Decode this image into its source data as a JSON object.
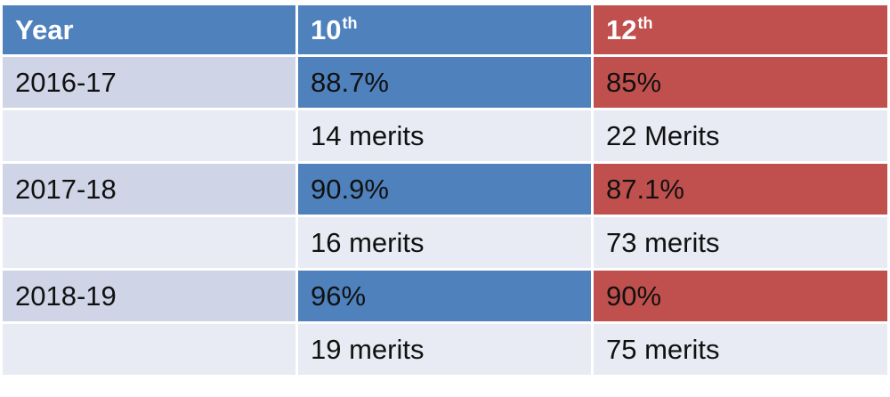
{
  "colors": {
    "header": "#4f81bd",
    "col_10th": "#4f81bd",
    "col_12th": "#c0504d",
    "band": "#cfd5e6",
    "plain": "#e8ebf3"
  },
  "header": {
    "year": "Year",
    "c10_num": "10",
    "c10_sup": "th",
    "c12_num": "12",
    "c12_sup": "th"
  },
  "rows": [
    {
      "year": "2016-17",
      "pct_10": "88.7%",
      "pct_12": "85%"
    },
    {
      "year": "",
      "merits_10": "14 merits",
      "merits_12": "22 Merits"
    },
    {
      "year": "2017-18",
      "pct_10": "90.9%",
      "pct_12": "87.1%"
    },
    {
      "year": "",
      "merits_10": "16 merits",
      "merits_12": "73 merits"
    },
    {
      "year": "2018-19",
      "pct_10": "96%",
      "pct_12": "90%"
    },
    {
      "year": "",
      "merits_10": "19 merits",
      "merits_12": "75 merits"
    }
  ]
}
